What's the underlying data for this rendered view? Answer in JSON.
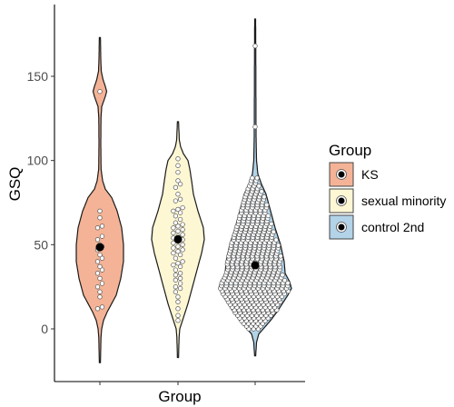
{
  "chart_data": {
    "type": "violin",
    "title": "",
    "xlabel": "Group",
    "ylabel": "GSQ",
    "ylim": [
      -20,
      185
    ],
    "yticks": [
      0,
      50,
      100,
      150
    ],
    "grid": false,
    "legend_title": "Group",
    "legend_position": "right",
    "series": [
      {
        "name": "KS",
        "color": "#f4b396",
        "mean": 48.5,
        "violin_range": [
          -20,
          173
        ],
        "points": [
          141,
          70,
          66,
          61,
          60,
          55,
          53,
          50,
          49,
          47,
          44,
          42,
          40,
          37,
          35,
          33,
          30,
          27,
          25,
          22,
          19,
          13,
          12
        ]
      },
      {
        "name": "sexual minority",
        "color": "#fdf7d4",
        "mean": 53.2,
        "violin_range": [
          -17,
          123
        ],
        "points": [
          101,
          97,
          93,
          88,
          86,
          84,
          80,
          77,
          76,
          72,
          71,
          70,
          69,
          67,
          65,
          63,
          62,
          61,
          60,
          59,
          58,
          57,
          56,
          55,
          54,
          53,
          52,
          51,
          50,
          49,
          48,
          47,
          46,
          45,
          44,
          42,
          40,
          39,
          38,
          37,
          35,
          33,
          32,
          30,
          29,
          27,
          25,
          24,
          22,
          19,
          16,
          12,
          8,
          5
        ]
      },
      {
        "name": "control 2nd",
        "color": "#b2d3e8",
        "mean": 37.8,
        "violin_range": [
          -16,
          184
        ],
        "outliers": [
          168,
          120
        ]
      }
    ]
  }
}
